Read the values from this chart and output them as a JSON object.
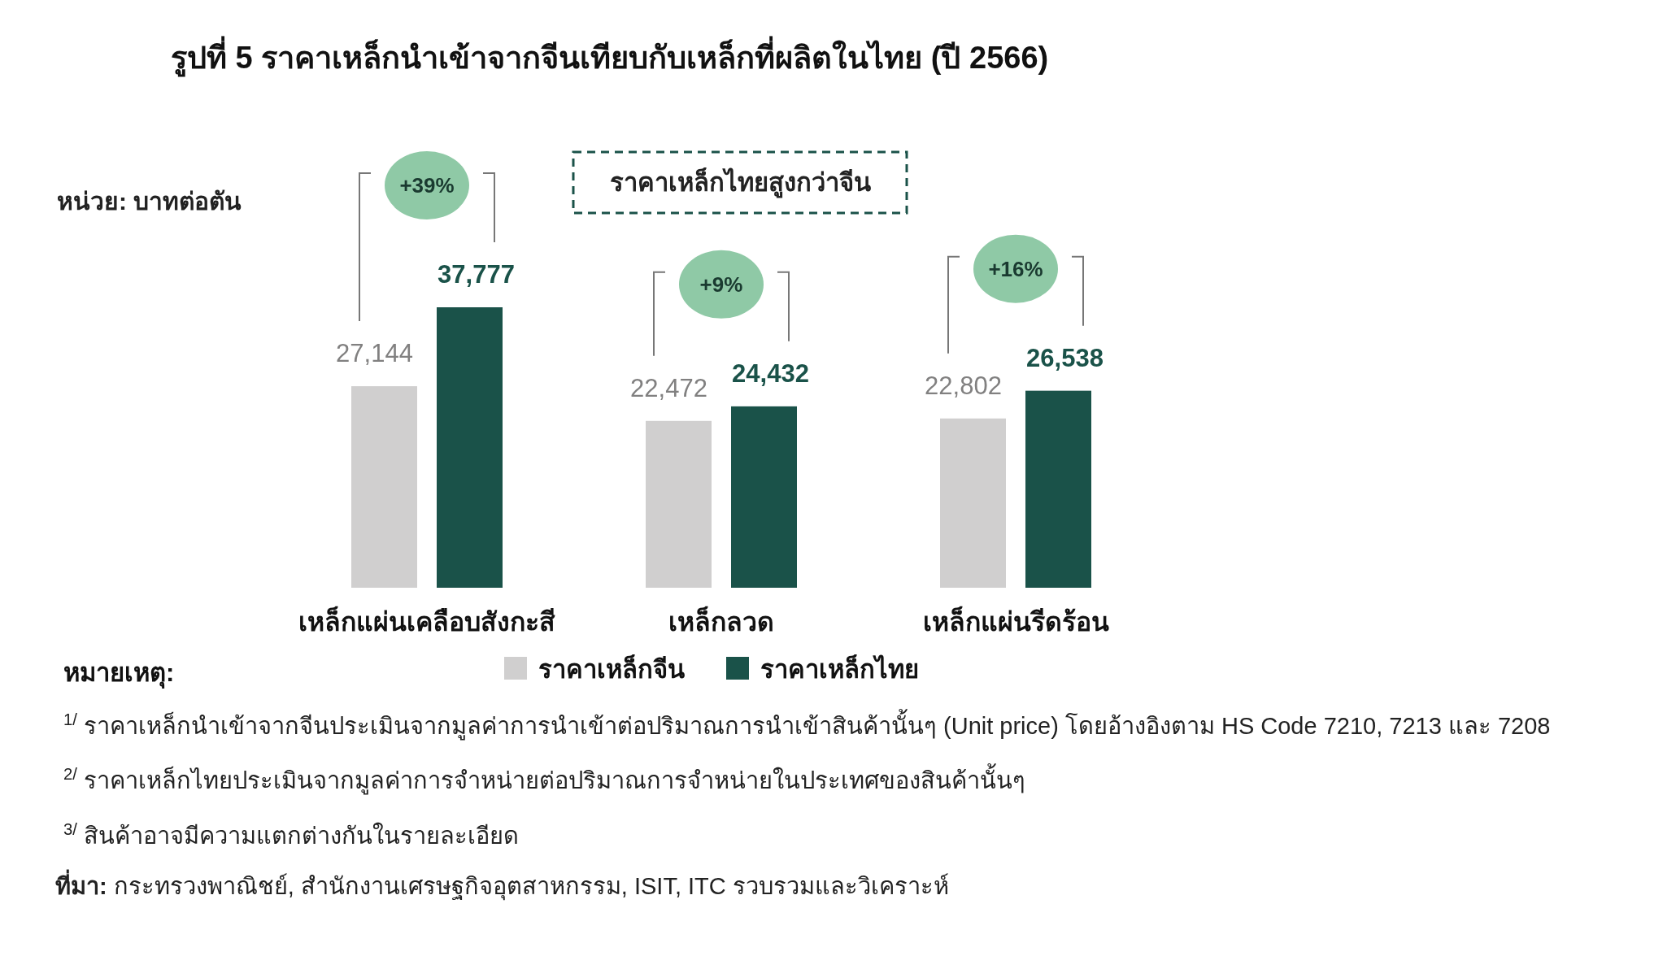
{
  "chart_data": {
    "type": "bar",
    "title": "รูปที่ 5 ราคาเหล็กนำเข้าจากจีนเทียบกับเหล็กที่ผลิตในไทย (ปี 2566)",
    "ylabel": "หน่วย: บาทต่อตัน",
    "categories": [
      "เหล็กแผ่นเคลือบสังกะสี",
      "เหล็กลวด",
      "เหล็กแผ่นรีดร้อน"
    ],
    "series": [
      {
        "name": "ราคาเหล็กจีน",
        "color": "#d0cfcf",
        "values": [
          27144,
          22472,
          22802
        ],
        "value_labels": [
          "27,144",
          "22,472",
          "22,802"
        ]
      },
      {
        "name": "ราคาเหล็กไทย",
        "color": "#1a5249",
        "values": [
          37777,
          24432,
          26538
        ],
        "value_labels": [
          "37,777",
          "24,432",
          "26,538"
        ]
      }
    ],
    "legend": "bottom",
    "legend_title": "หมายเหตุ:",
    "annotations": [
      "+39%",
      "+9%",
      "+16%",
      "ราคาเหล็กไทยสูงกว่าจีน",
      "$^{1/}$ ราคาเหล็กนำเข้าจากจีนประเมินจากมูลค่าการนำเข้าต่อปริมาณการนำเข้าสินค้านั้นๆ (Unit price) โดยอ้างอิงตาม HS Code 7210, 7213 และ 7208",
      "$^{2/}$ ราคาเหล็กไทยประเมินจากมูลค่าการจำหน่ายต่อปริมาณการจำหน่ายในประเทศของสินค้านั้นๆ",
      "$^{3/}$ สินค้าอาจมีความแตกต่างกันในรายละเอียด",
      "ที่มา: กระทรวงพาณิชย์, สำนักงานเศรษฐกิจอุตสาหกรรม, ISIT, ITC รวบรวมและวิเคราะห์"
    ]
  }
}
